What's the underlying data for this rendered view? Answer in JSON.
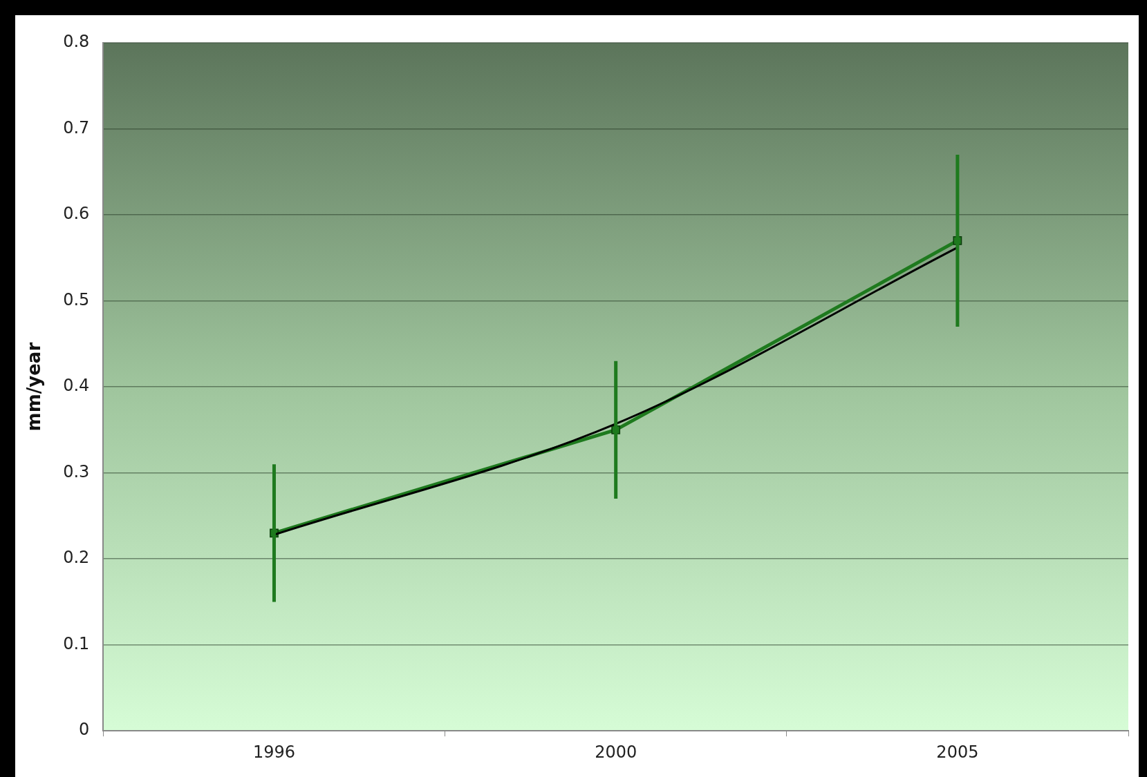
{
  "chart_data": {
    "type": "line",
    "ylabel": "mm/year",
    "categories": [
      "1996",
      "2000",
      "2005"
    ],
    "series": [
      {
        "color": "#1e7a1e",
        "values": [
          0.23,
          0.35,
          0.57
        ],
        "errors": [
          0.08,
          0.08,
          0.1
        ],
        "marker": "square"
      },
      {
        "color": "#000000",
        "values": [
          0.228,
          0.357,
          0.562
        ],
        "marker": "none"
      }
    ],
    "ylim": [
      0,
      0.8
    ],
    "yticks": [
      0,
      0.1,
      0.2,
      0.3,
      0.4,
      0.5,
      0.6,
      0.7,
      0.8
    ],
    "grid": "y",
    "legend": false
  }
}
